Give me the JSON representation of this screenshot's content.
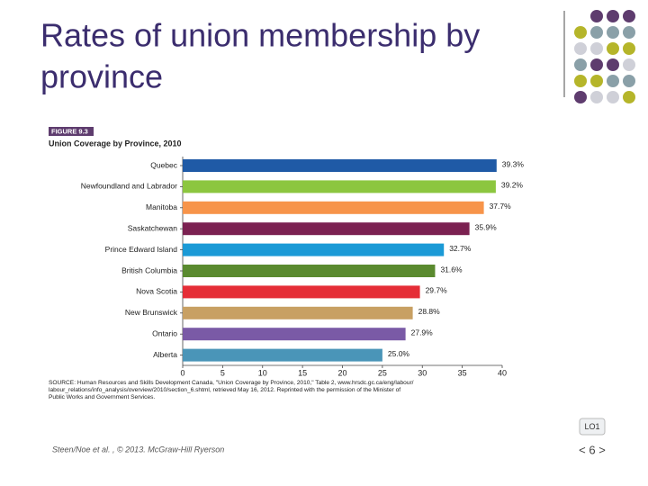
{
  "slide_title": [
    "Rates of union membership by",
    "province"
  ],
  "footer": "Steen/Noe et al. , © 2013. McGraw-Hill Ryerson",
  "lo_label": "LO1",
  "page_number": "< 6 >",
  "chart_data": {
    "type": "bar",
    "orientation": "horizontal",
    "figure_label": "FIGURE 9.3",
    "title": "Union Coverage by Province, 2010",
    "categories": [
      "Quebec",
      "Newfoundland and Labrador",
      "Manitoba",
      "Saskatchewan",
      "Prince Edward Island",
      "British Columbia",
      "Nova Scotia",
      "New Brunswick",
      "Ontario",
      "Alberta"
    ],
    "values": [
      39.3,
      39.2,
      37.7,
      35.9,
      32.7,
      31.6,
      29.7,
      28.8,
      27.9,
      25.0
    ],
    "value_labels": [
      "39.3%",
      "39.2%",
      "37.7%",
      "35.9%",
      "32.7%",
      "31.6%",
      "29.7%",
      "28.8%",
      "27.9%",
      "25.0%"
    ],
    "colors": [
      "#1f5aa6",
      "#8cc63f",
      "#f7944a",
      "#7b2151",
      "#1b9ad6",
      "#5a8a2f",
      "#e52d37",
      "#c8a063",
      "#7a5aa6",
      "#4a95b8"
    ],
    "xlim": [
      0,
      40
    ],
    "xticks": [
      0,
      5,
      10,
      15,
      20,
      25,
      30,
      35,
      40
    ],
    "source": [
      "SOURCE: Human Resources and Skills Development Canada, \"Union Coverage by Province, 2010,\" Table 2, www.hrsdc.gc.ca/eng/labour/",
      "labour_relations/info_analysis/overview/2010/section_6.shtml, retrieved May 16, 2012. Reprinted with the permission of the Minister of",
      "Public Works and Government Services."
    ]
  }
}
